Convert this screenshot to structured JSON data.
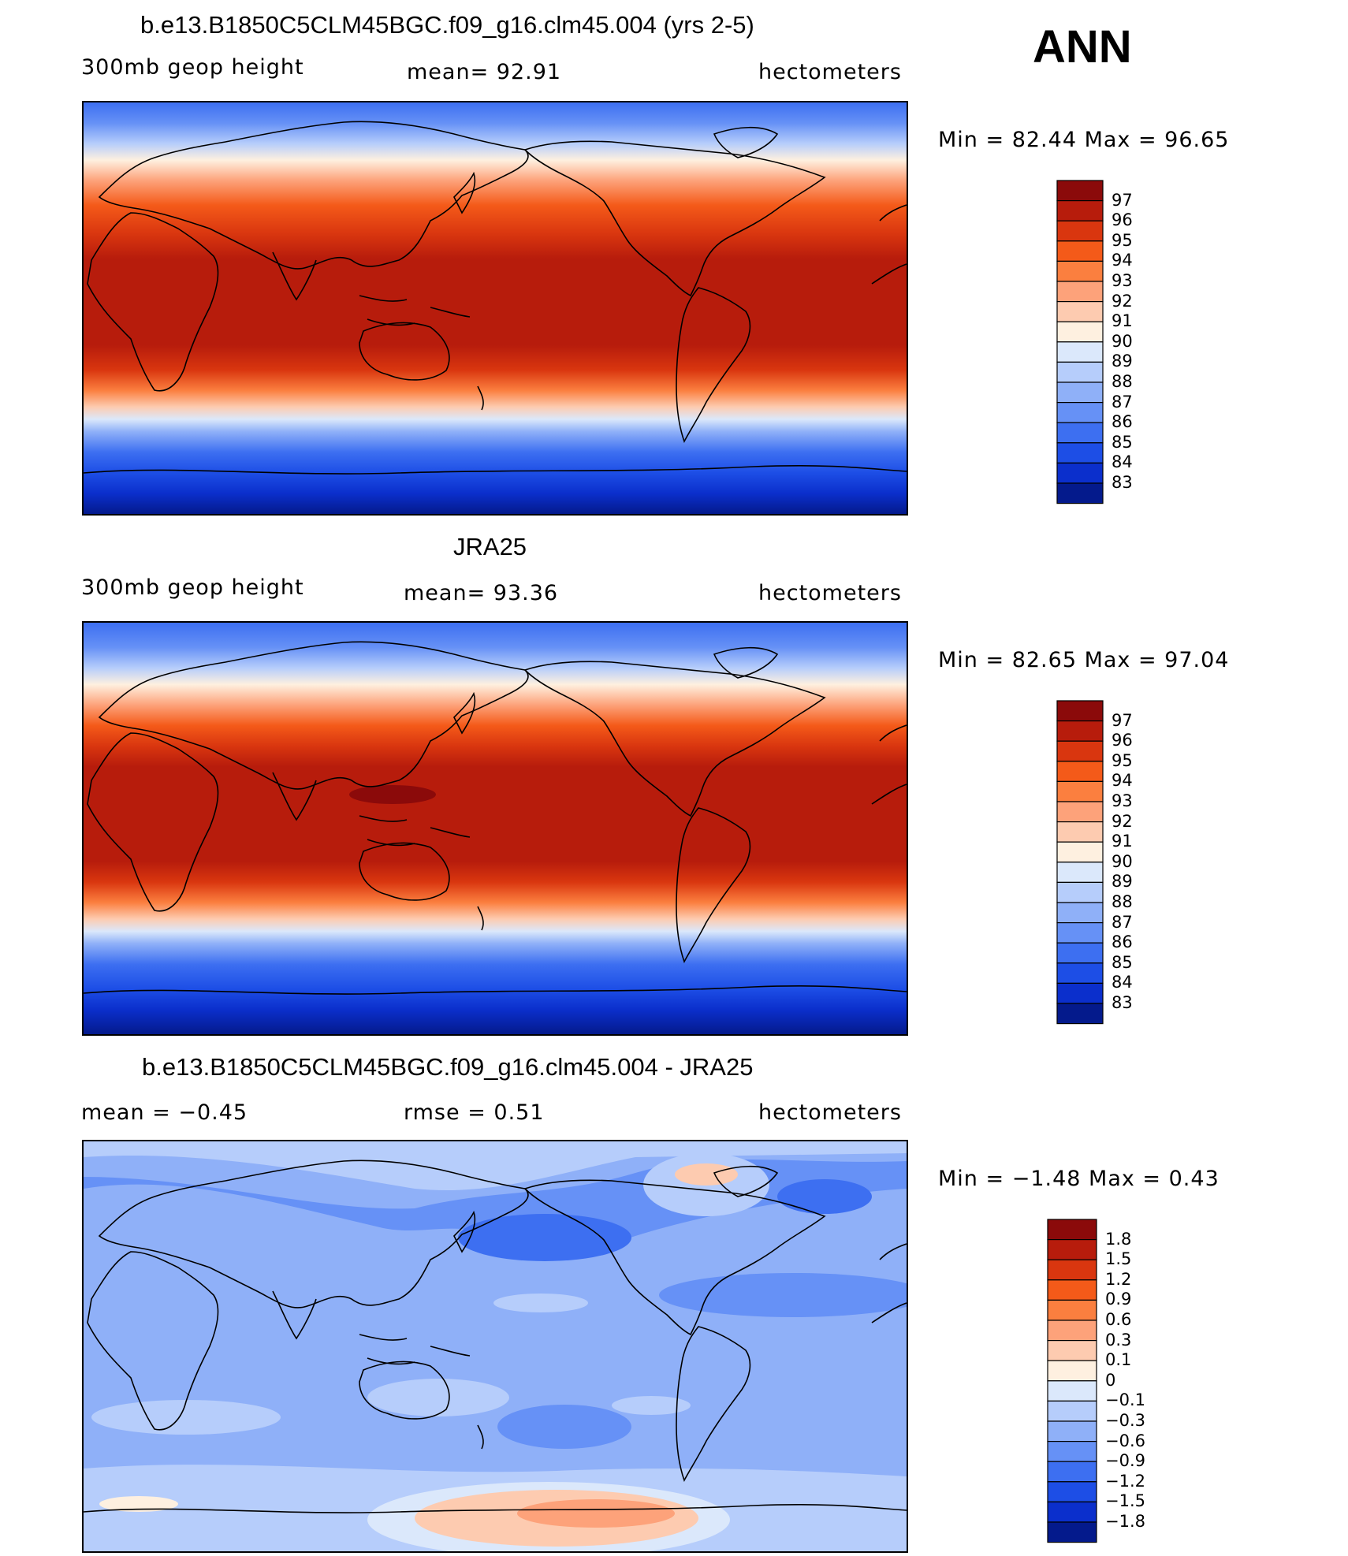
{
  "season": "ANN",
  "coast_color": "#000000",
  "panels": [
    {
      "id": "model",
      "title": "b.e13.B1850C5CLM45BGC.f09_g16.clm45.004 (yrs 2-5)",
      "left_label": "300mb geop height",
      "center_label": "mean=   92.91",
      "right_label": "hectometers",
      "minmax": "Min =   82.44 Max =   96.65",
      "colorbar_labels": [
        "97",
        "96",
        "95",
        "94",
        "93",
        "92",
        "91",
        "90",
        "89",
        "88",
        "87",
        "86",
        "85",
        "84",
        "83"
      ],
      "colorbar_colors": [
        "#8b0a0a",
        "#b71c0c",
        "#d9360f",
        "#f45a19",
        "#fb7f3f",
        "#fda27a",
        "#fdcbb0",
        "#fef0e0",
        "#dbe8fb",
        "#b6cdfb",
        "#8fb0f8",
        "#6691f6",
        "#3d6ff1",
        "#1d4ee6",
        "#0b2fcc",
        "#041a8c"
      ]
    },
    {
      "id": "obs",
      "title": "JRA25",
      "left_label": "300mb geop height",
      "center_label": "mean=   93.36",
      "right_label": "hectometers",
      "minmax": "Min =   82.65 Max =   97.04",
      "colorbar_labels": [
        "97",
        "96",
        "95",
        "94",
        "93",
        "92",
        "91",
        "90",
        "89",
        "88",
        "87",
        "86",
        "85",
        "84",
        "83"
      ],
      "colorbar_colors": [
        "#8b0a0a",
        "#b71c0c",
        "#d9360f",
        "#f45a19",
        "#fb7f3f",
        "#fda27a",
        "#fdcbb0",
        "#fef0e0",
        "#dbe8fb",
        "#b6cdfb",
        "#8fb0f8",
        "#6691f6",
        "#3d6ff1",
        "#1d4ee6",
        "#0b2fcc",
        "#041a8c"
      ]
    },
    {
      "id": "diff",
      "title": "b.e13.B1850C5CLM45BGC.f09_g16.clm45.004 - JRA25",
      "left_label": "mean =   −0.45",
      "center_label": "rmse =    0.51",
      "right_label": "hectometers",
      "minmax": "Min =   −1.48 Max =    0.43",
      "colorbar_labels": [
        "1.8",
        "1.5",
        "1.2",
        "0.9",
        "0.6",
        "0.3",
        "0.1",
        "0",
        "−0.1",
        "−0.3",
        "−0.6",
        "−0.9",
        "−1.2",
        "−1.5",
        "−1.8"
      ],
      "colorbar_colors": [
        "#8b0a0a",
        "#b71c0c",
        "#d9360f",
        "#f45a19",
        "#fb7f3f",
        "#fda27a",
        "#fdcbb0",
        "#fef0e0",
        "#dbe8fb",
        "#b6cdfb",
        "#8fb0f8",
        "#6691f6",
        "#3d6ff1",
        "#1d4ee6",
        "#0b2fcc",
        "#041a8c"
      ]
    }
  ]
}
